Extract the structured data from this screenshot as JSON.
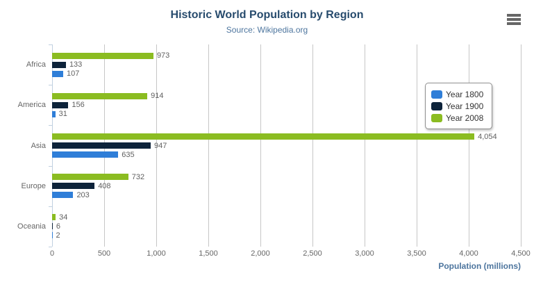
{
  "chart_data": {
    "type": "bar",
    "orientation": "horizontal",
    "title": "Historic World Population by Region",
    "subtitle": "Source: Wikipedia.org",
    "categories": [
      "Africa",
      "America",
      "Asia",
      "Europe",
      "Oceania"
    ],
    "series": [
      {
        "name": "Year 1800",
        "color": "#2f7ed8",
        "values": [
          107,
          31,
          635,
          203,
          2
        ]
      },
      {
        "name": "Year 1900",
        "color": "#0d233a",
        "values": [
          133,
          156,
          947,
          408,
          6
        ]
      },
      {
        "name": "Year 2008",
        "color": "#8bbc21",
        "values": [
          973,
          914,
          4054,
          732,
          34
        ]
      }
    ],
    "bar_display_order_top_to_bottom": [
      "Year 2008",
      "Year 1900",
      "Year 1800"
    ],
    "xlabel": "Population (millions)",
    "xlim": [
      0,
      4500
    ],
    "xtick_interval": 500,
    "xtick_labels": [
      "0",
      "500",
      "1,000",
      "1,500",
      "2,000",
      "2,500",
      "3,000",
      "3,500",
      "4,000",
      "4,500"
    ],
    "data_labels": true,
    "grid": true,
    "legend_position": "right"
  },
  "colors": {
    "title": "#274b6d",
    "subtitle": "#4d759e",
    "axis_title": "#4d759e",
    "axis_labels": "#666666",
    "data_labels": "#606060",
    "gridline": "#c6c6c6",
    "category_axis_line": "#c0d0e0",
    "legend_border": "#909090",
    "legend_text": "#333333",
    "menu_icon": "#666666"
  },
  "icons": {
    "context_menu": "hamburger-icon"
  }
}
